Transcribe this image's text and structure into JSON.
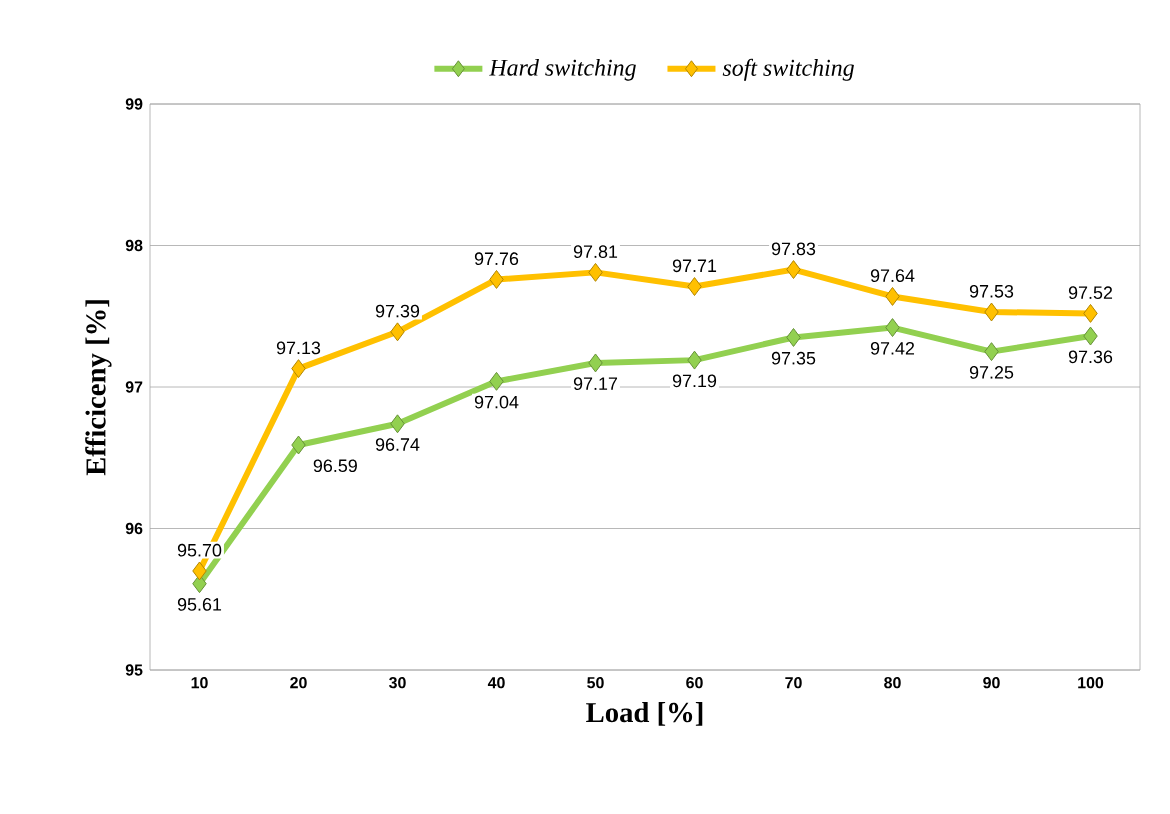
{
  "chart_data": {
    "type": "line",
    "xlabel": "Load [%]",
    "ylabel": "Efficiceny [%]",
    "categories": [
      "10",
      "20",
      "30",
      "40",
      "50",
      "60",
      "70",
      "80",
      "90",
      "100"
    ],
    "series": [
      {
        "name": "Hard switching",
        "color": "#92d050",
        "values": [
          95.61,
          96.59,
          96.74,
          97.04,
          97.17,
          97.19,
          97.35,
          97.42,
          97.25,
          97.36
        ],
        "value_labels": [
          "95.61",
          "96.59",
          "96.74",
          "97.04",
          "97.17",
          "97.19",
          "97.35",
          "97.42",
          "97.25",
          "97.36"
        ]
      },
      {
        "name": "soft switching",
        "color": "#ffc000",
        "values": [
          95.7,
          97.13,
          97.39,
          97.76,
          97.81,
          97.71,
          97.83,
          97.64,
          97.53,
          97.52
        ],
        "value_labels": [
          "95.70",
          "97.13",
          "97.39",
          "97.76",
          "97.81",
          "97.71",
          "97.83",
          "97.64",
          "97.53",
          "97.52"
        ]
      }
    ],
    "ylim": [
      95,
      99
    ],
    "yticks": [
      95,
      96,
      97,
      98,
      99
    ],
    "grid": "y",
    "legend": "top",
    "marker": "diamond",
    "line_style": "solid",
    "data_labels": true
  }
}
